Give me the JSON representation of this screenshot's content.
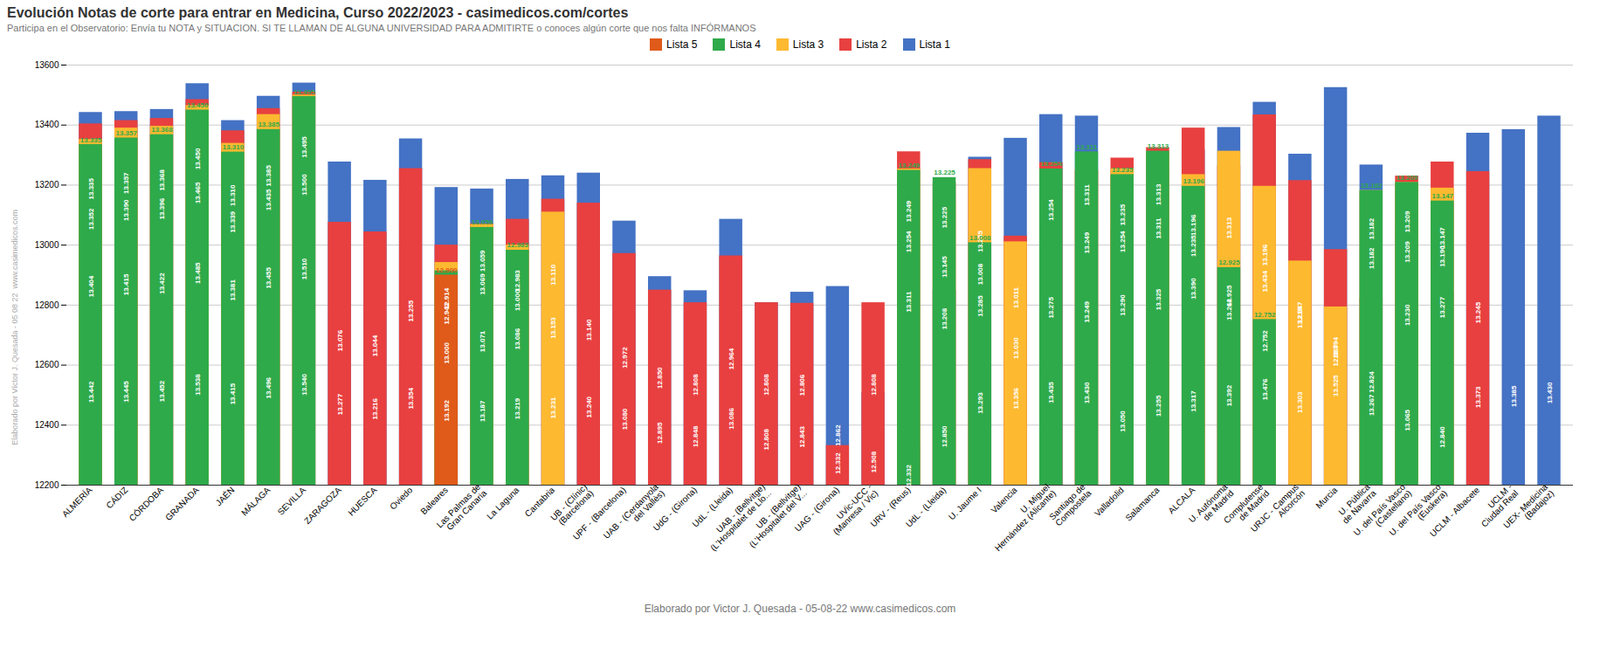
{
  "chart_data": {
    "type": "bar",
    "title": "Evolución Notas de corte para entrar en Medicina, Curso 2022/2023 - casimedicos.com/cortes",
    "subtitle": "Participa en el Observatorio: Envía tu NOTA y SITUACION. SI TE LLAMAN DE ALGUNA UNIVERSIDAD PARA ADMITIRTE o conoces algún corte que nos falta INFÓRMANOS",
    "caption": "Elaborado por Victor J. Quesada - 05-08-22  www.casimedicos.com",
    "annotations": [
      "Elaborado por Víctor J. Quesada - 05 08 22  www.casimedicos.com"
    ],
    "categories": [
      "ALMERÍA",
      "CÁDIZ",
      "CÓRDOBA",
      "GRANADA",
      "JAÉN",
      "MÁLAGA",
      "SEVILLA",
      "ZARAGOZA",
      "HUESCA",
      "Oviedo",
      "Baleares",
      "Las Palmas de\nGran Canaria",
      "La Laguna",
      "Cantabria",
      "UB - (Clínic)\n(Barcelona)",
      "UPF - (Barcelona)",
      "UAB - (Cerdanyola\ndel Vallès)",
      "UdG - (Girona)",
      "UdL - (Lleida)",
      "UAB - (Bellvitge)\n(L'Hospitalet de Llo...",
      "UB - (Bellvitge)\n(L'Hospitalet del V...",
      "UAG - (Girona)",
      "UVic-UCC -\n(Manresa / Vic)",
      "URV - (Reus)",
      "UdL - (Lleida)",
      "U. Jaume I",
      "Valencia",
      "U. Miguel\nHernández (Alicante)",
      "Santiago de\nCompostela",
      "Valladolid",
      "Salamanca",
      "ALCALA",
      "U. Autónoma\nde Madrid",
      "Complutense\nde Madrid",
      "URJC - Campus\nAlcorcón",
      "Murcia",
      "U. Pública\nde Navarra",
      "U. del País Vasco\n(Castellano)",
      "U. del País Vasco\n(Euskera)",
      "UCLM - Albacete",
      "UCLM -\nCiudad Real",
      "UEX- Medicina\n(Badajoz)"
    ],
    "series": [
      {
        "name": "Lista 1",
        "color": "#4472c4",
        "values": [
          13442,
          13445,
          13452,
          13538,
          13415,
          13496,
          13540,
          13277,
          13216,
          13354,
          13192,
          13187,
          13219,
          13231,
          13240,
          13080,
          12895,
          12848,
          13086,
          12808,
          12843,
          12862,
          12508,
          12332,
          12850,
          13293,
          13356,
          13435,
          13430,
          13050,
          13255,
          13317,
          13392,
          13476,
          13303,
          13525,
          13267,
          13065,
          12840,
          13373,
          13385,
          13430
        ],
        "value_labels": [
          "13.442",
          "13.445",
          "13.452",
          "13.538",
          "13.415",
          "13.496",
          "13.540",
          "13.277",
          "13.216",
          "13.354",
          "13.192",
          "13.187",
          "13.219",
          "13.231",
          "13.240",
          "13.080",
          "12.895",
          "12.848",
          "13.086",
          "12.808",
          "12.843",
          "12.862",
          "12.508",
          "12.332",
          "12.850",
          "13.293",
          "13.356",
          "13.435",
          "13.430",
          "13.050",
          "13.255",
          "13.317",
          "13.392",
          "13.476",
          "13.303",
          "13.525",
          "13.267",
          "13.065",
          "12.840",
          "13.373",
          "13.385",
          "13.430"
        ]
      },
      {
        "name": "Lista 2",
        "color": "#e84040",
        "values": [
          13404,
          13415,
          13422,
          13485,
          13381,
          13455,
          13510,
          13076,
          13044,
          13255,
          13000,
          13071,
          13086,
          13153,
          13140,
          12972,
          12850,
          12808,
          12964,
          12808,
          12806,
          12332,
          12808,
          13311,
          13208,
          13285,
          13030,
          13275,
          13249,
          13290,
          13325,
          13390,
          13264,
          13434,
          13215,
          12985,
          12824,
          13230,
          13277,
          13245,
          null,
          null
        ],
        "value_labels": [
          "13.404",
          "13.415",
          "13.422",
          "13.485",
          "13.381",
          "13.455",
          "13.510",
          "13.076",
          "13.044",
          "13.255",
          "13.000",
          "13.071",
          "13.086",
          "13.153",
          "13.140",
          "12.972",
          "12.850",
          "12.808",
          "12.964",
          "12.808",
          "12.806",
          "12.332",
          "12.808",
          "13.311",
          "13.208",
          "13.285",
          "13.030",
          "13.275",
          "13.249",
          "13.290",
          "13.325",
          "13.390",
          "13.264",
          "13.434",
          "13.215",
          "12.985",
          "12.824",
          "13.230",
          "13.277",
          "13.245",
          null,
          null
        ]
      },
      {
        "name": "Lista 3",
        "color": "#fdb930",
        "values": [
          13352,
          13390,
          13396,
          13465,
          13339,
          13435,
          13500,
          null,
          null,
          null,
          12942,
          13069,
          13000,
          13110,
          null,
          null,
          null,
          null,
          null,
          null,
          null,
          null,
          null,
          13254,
          13145,
          13255,
          13011,
          null,
          13249,
          13254,
          13311,
          13235,
          13313,
          13196,
          12947,
          12794,
          13182,
          13209,
          13190,
          null,
          null,
          null
        ],
        "value_labels": [
          "13.352",
          "13.390",
          "13.396",
          "13.465",
          "13.339",
          "13.435",
          "13.500",
          null,
          null,
          null,
          "12.942",
          "13.069",
          "13.000",
          "13.110",
          null,
          null,
          null,
          null,
          null,
          null,
          null,
          null,
          null,
          "13.254",
          "13.145",
          "13.255",
          "13.011",
          null,
          "13.249",
          "13.254",
          "13.311",
          "13.235",
          "13.313",
          "13.196",
          "12.947",
          "12.794",
          "13.182",
          "13.209",
          "13.190",
          null,
          null,
          null
        ]
      },
      {
        "name": "Lista 4",
        "color": "#2eaa4a",
        "values": [
          13335,
          13357,
          13368,
          13450,
          13310,
          13385,
          13495,
          null,
          null,
          null,
          12914,
          13059,
          12983,
          null,
          null,
          null,
          null,
          null,
          null,
          null,
          null,
          null,
          null,
          13249,
          13225,
          13008,
          null,
          13254,
          13311,
          13235,
          13313,
          13196,
          12925,
          12752,
          null,
          null,
          13182,
          13209,
          13147,
          null,
          null,
          null
        ],
        "value_labels": [
          "13.335",
          "13.357",
          "13.368",
          "13.450",
          "13.310",
          "13.385",
          "13.495",
          null,
          null,
          null,
          "12.914",
          "13.059",
          "12.983",
          null,
          null,
          null,
          null,
          null,
          null,
          null,
          null,
          null,
          null,
          "13.249",
          "13.225",
          "13.008",
          null,
          "13.254",
          "13.311",
          "13.235",
          "13.313",
          "13.196",
          "12.925",
          "12.752",
          null,
          null,
          "13.182",
          "13.209",
          "13.147",
          null,
          null,
          null
        ]
      },
      {
        "name": "Lista 5",
        "color": "#e05a1a",
        "values": [
          null,
          null,
          null,
          null,
          null,
          null,
          null,
          null,
          null,
          null,
          12900,
          null,
          null,
          null,
          null,
          null,
          null,
          null,
          null,
          null,
          null,
          null,
          null,
          null,
          null,
          null,
          null,
          null,
          null,
          null,
          null,
          null,
          null,
          null,
          null,
          null,
          null,
          null,
          null,
          null,
          null,
          null
        ],
        "value_labels": [
          null,
          null,
          null,
          null,
          null,
          null,
          null,
          null,
          null,
          null,
          "12.900",
          null,
          null,
          null,
          null,
          null,
          null,
          null,
          null,
          null,
          null,
          null,
          null,
          null,
          null,
          null,
          null,
          null,
          null,
          null,
          null,
          null,
          null,
          null,
          null,
          null,
          null,
          null,
          null,
          null,
          null,
          null
        ]
      }
    ],
    "ylim": [
      12200,
      13600
    ],
    "yticks": [
      12200,
      12400,
      12600,
      12800,
      13000,
      13200,
      13400,
      13600
    ],
    "grid": true,
    "legend": "top",
    "stacked": false,
    "data_labels": true
  }
}
